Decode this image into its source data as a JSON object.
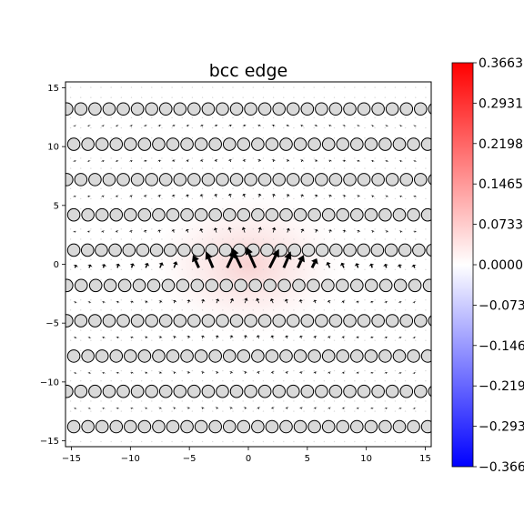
{
  "chart_data": {
    "type": "scatter",
    "title": "bcc edge",
    "xlabel": "",
    "ylabel": "",
    "xlim": [
      -15.5,
      15.5
    ],
    "ylim": [
      -15.5,
      15.5
    ],
    "x_ticks": [
      -15,
      -10,
      -5,
      0,
      5,
      10,
      15
    ],
    "y_ticks": [
      -15,
      -10,
      -5,
      0,
      5,
      10,
      15
    ],
    "grid": false,
    "colormap": "bwr",
    "colorbar": {
      "min": -0.3663,
      "max": 0.3663,
      "tick_values": [
        0.3663,
        0.2931,
        0.2198,
        0.1465,
        0.0733,
        0.0,
        -0.0733,
        -0.1465,
        -0.2198,
        -0.2931,
        -0.3663
      ],
      "tick_labels": [
        "0.3663",
        "0.2931",
        "0.2198",
        "0.1465",
        "0.0733",
        "0.0000",
        "-0.073",
        "-0.146",
        "-0.219",
        "-0.293",
        "-0.366"
      ]
    },
    "field_peak": {
      "x": 0,
      "y": 0,
      "value": 0.06
    },
    "atom_rows": [
      {
        "y": 13.2,
        "x_start": -15.4,
        "spacing": 1.2,
        "count": 27
      },
      {
        "y": 10.2,
        "x_start": -14.8,
        "spacing": 1.2,
        "count": 26
      },
      {
        "y": 7.2,
        "x_start": -15.4,
        "spacing": 1.2,
        "count": 27
      },
      {
        "y": 4.2,
        "x_start": -14.8,
        "spacing": 1.2,
        "count": 26
      },
      {
        "y": 1.2,
        "x_start": -14.8,
        "spacing": 1.17,
        "count": 27
      },
      {
        "y": -1.8,
        "x_start": -15.4,
        "spacing": 1.23,
        "count": 26
      },
      {
        "y": -4.8,
        "x_start": -15.4,
        "spacing": 1.2,
        "count": 27
      },
      {
        "y": -7.8,
        "x_start": -14.8,
        "spacing": 1.2,
        "count": 26
      },
      {
        "y": -10.8,
        "x_start": -15.4,
        "spacing": 1.2,
        "count": 27
      },
      {
        "y": -13.8,
        "x_start": -14.8,
        "spacing": 1.2,
        "count": 26
      }
    ],
    "arrow_rows_y": [
      11.7,
      8.7,
      5.7,
      2.7,
      -0.3,
      -3.3,
      -6.3,
      -9.3,
      -12.3
    ],
    "arrow_spacing": 1.2,
    "core_arrows": [
      {
        "x": -4.2,
        "y": -0.3,
        "dx": -0.5,
        "dy": 1.1
      },
      {
        "x": -3.0,
        "y": -0.3,
        "dx": -0.6,
        "dy": 1.4
      },
      {
        "x": -1.8,
        "y": -0.3,
        "dx": 0.7,
        "dy": 1.5
      },
      {
        "x": -0.6,
        "y": -0.3,
        "dx": -0.8,
        "dy": 1.7
      },
      {
        "x": 0.6,
        "y": -0.3,
        "dx": -0.8,
        "dy": 1.8
      },
      {
        "x": 1.8,
        "y": -0.3,
        "dx": 0.8,
        "dy": 1.6
      },
      {
        "x": 3.0,
        "y": -0.3,
        "dx": 0.6,
        "dy": 1.4
      },
      {
        "x": 4.2,
        "y": -0.3,
        "dx": 0.5,
        "dy": 1.1
      },
      {
        "x": 5.4,
        "y": -0.3,
        "dx": 0.4,
        "dy": 0.8
      }
    ]
  }
}
